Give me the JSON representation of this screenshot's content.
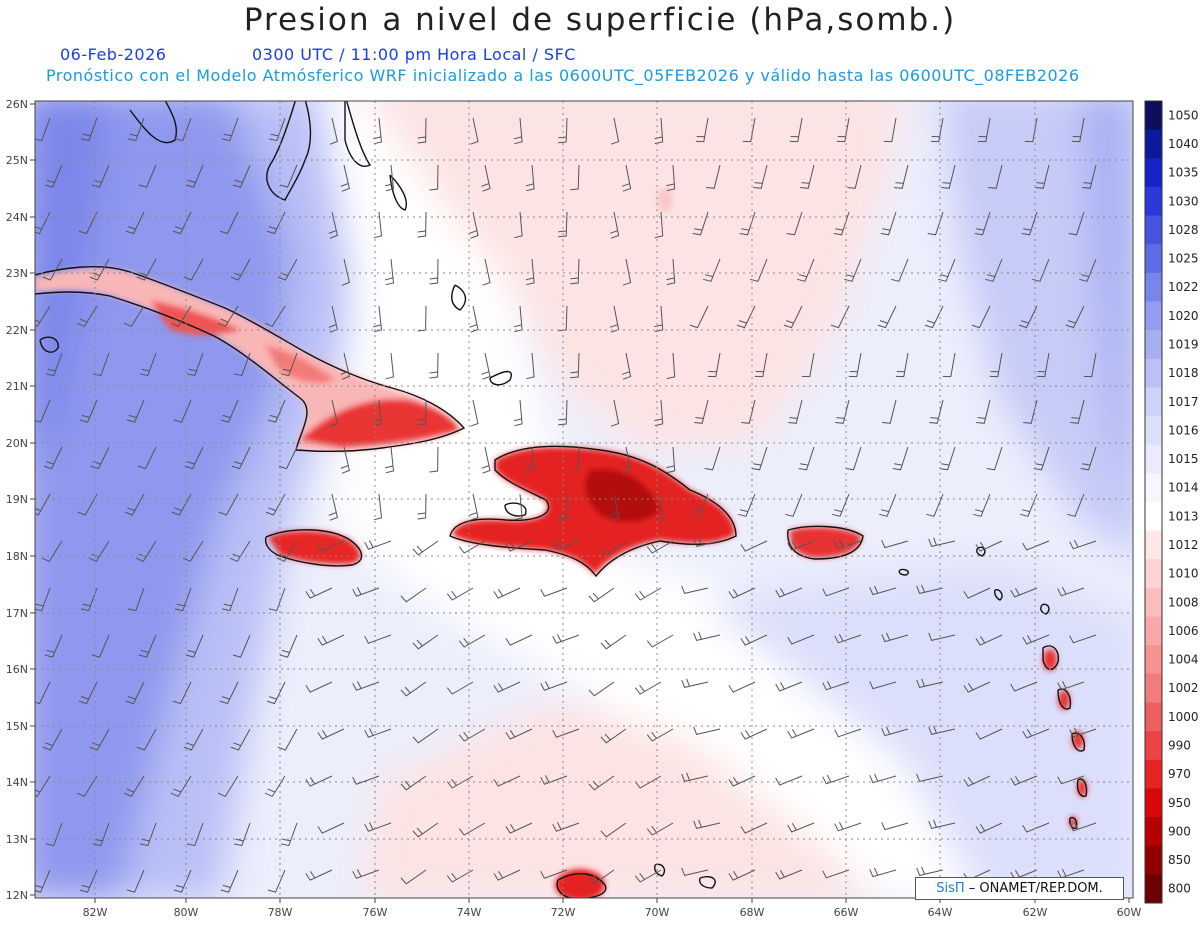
{
  "title": "Presion a nivel de superficie (hPa,somb.)",
  "date": "06-Feb-2026",
  "time_info": "0300 UTC / 11:00 pm Hora Local / SFC",
  "forecast_info": "Pronóstico con el Modelo Atmósferico WRF inicializado a las 0600UTC_05FEB2026 y válido hasta las  0600UTC_08FEB2026",
  "credit": {
    "brand": "SisΠ",
    "org": "– ONAMET/REP.DOM."
  },
  "lat_labels": [
    "26N",
    "25N",
    "24N",
    "23N",
    "22N",
    "21N",
    "20N",
    "19N",
    "18N",
    "17N",
    "16N",
    "15N",
    "14N",
    "13N",
    "12N"
  ],
  "lon_labels": [
    "82W",
    "80W",
    "78W",
    "76W",
    "74W",
    "72W",
    "70W",
    "68W",
    "66W",
    "64W",
    "62W",
    "60W"
  ],
  "colorbar": {
    "levels": [
      "1050",
      "1040",
      "1035",
      "1030",
      "1028",
      "1025",
      "1022",
      "1020",
      "1019",
      "1018",
      "1017",
      "1016",
      "1015",
      "1014",
      "1013",
      "1012",
      "1010",
      "1008",
      "1006",
      "1004",
      "1002",
      "1000",
      "990",
      "970",
      "950",
      "900",
      "850",
      "800"
    ],
    "colors": [
      "#0b0f5e",
      "#0a1a9a",
      "#1424c8",
      "#2a3ad8",
      "#4555e0",
      "#5f6ce6",
      "#7a85ec",
      "#929cf0",
      "#a7aff3",
      "#bbc1f6",
      "#cdd2f9",
      "#dde0fb",
      "#eaecfd",
      "#f5f6ff",
      "#ffffff",
      "#fde7e7",
      "#fcd3d3",
      "#fabebe",
      "#f8a8a8",
      "#f59292",
      "#f27b7b",
      "#ee6060",
      "#ea4444",
      "#e62424",
      "#d80808",
      "#b80000",
      "#920000",
      "#6a0000"
    ]
  }
}
